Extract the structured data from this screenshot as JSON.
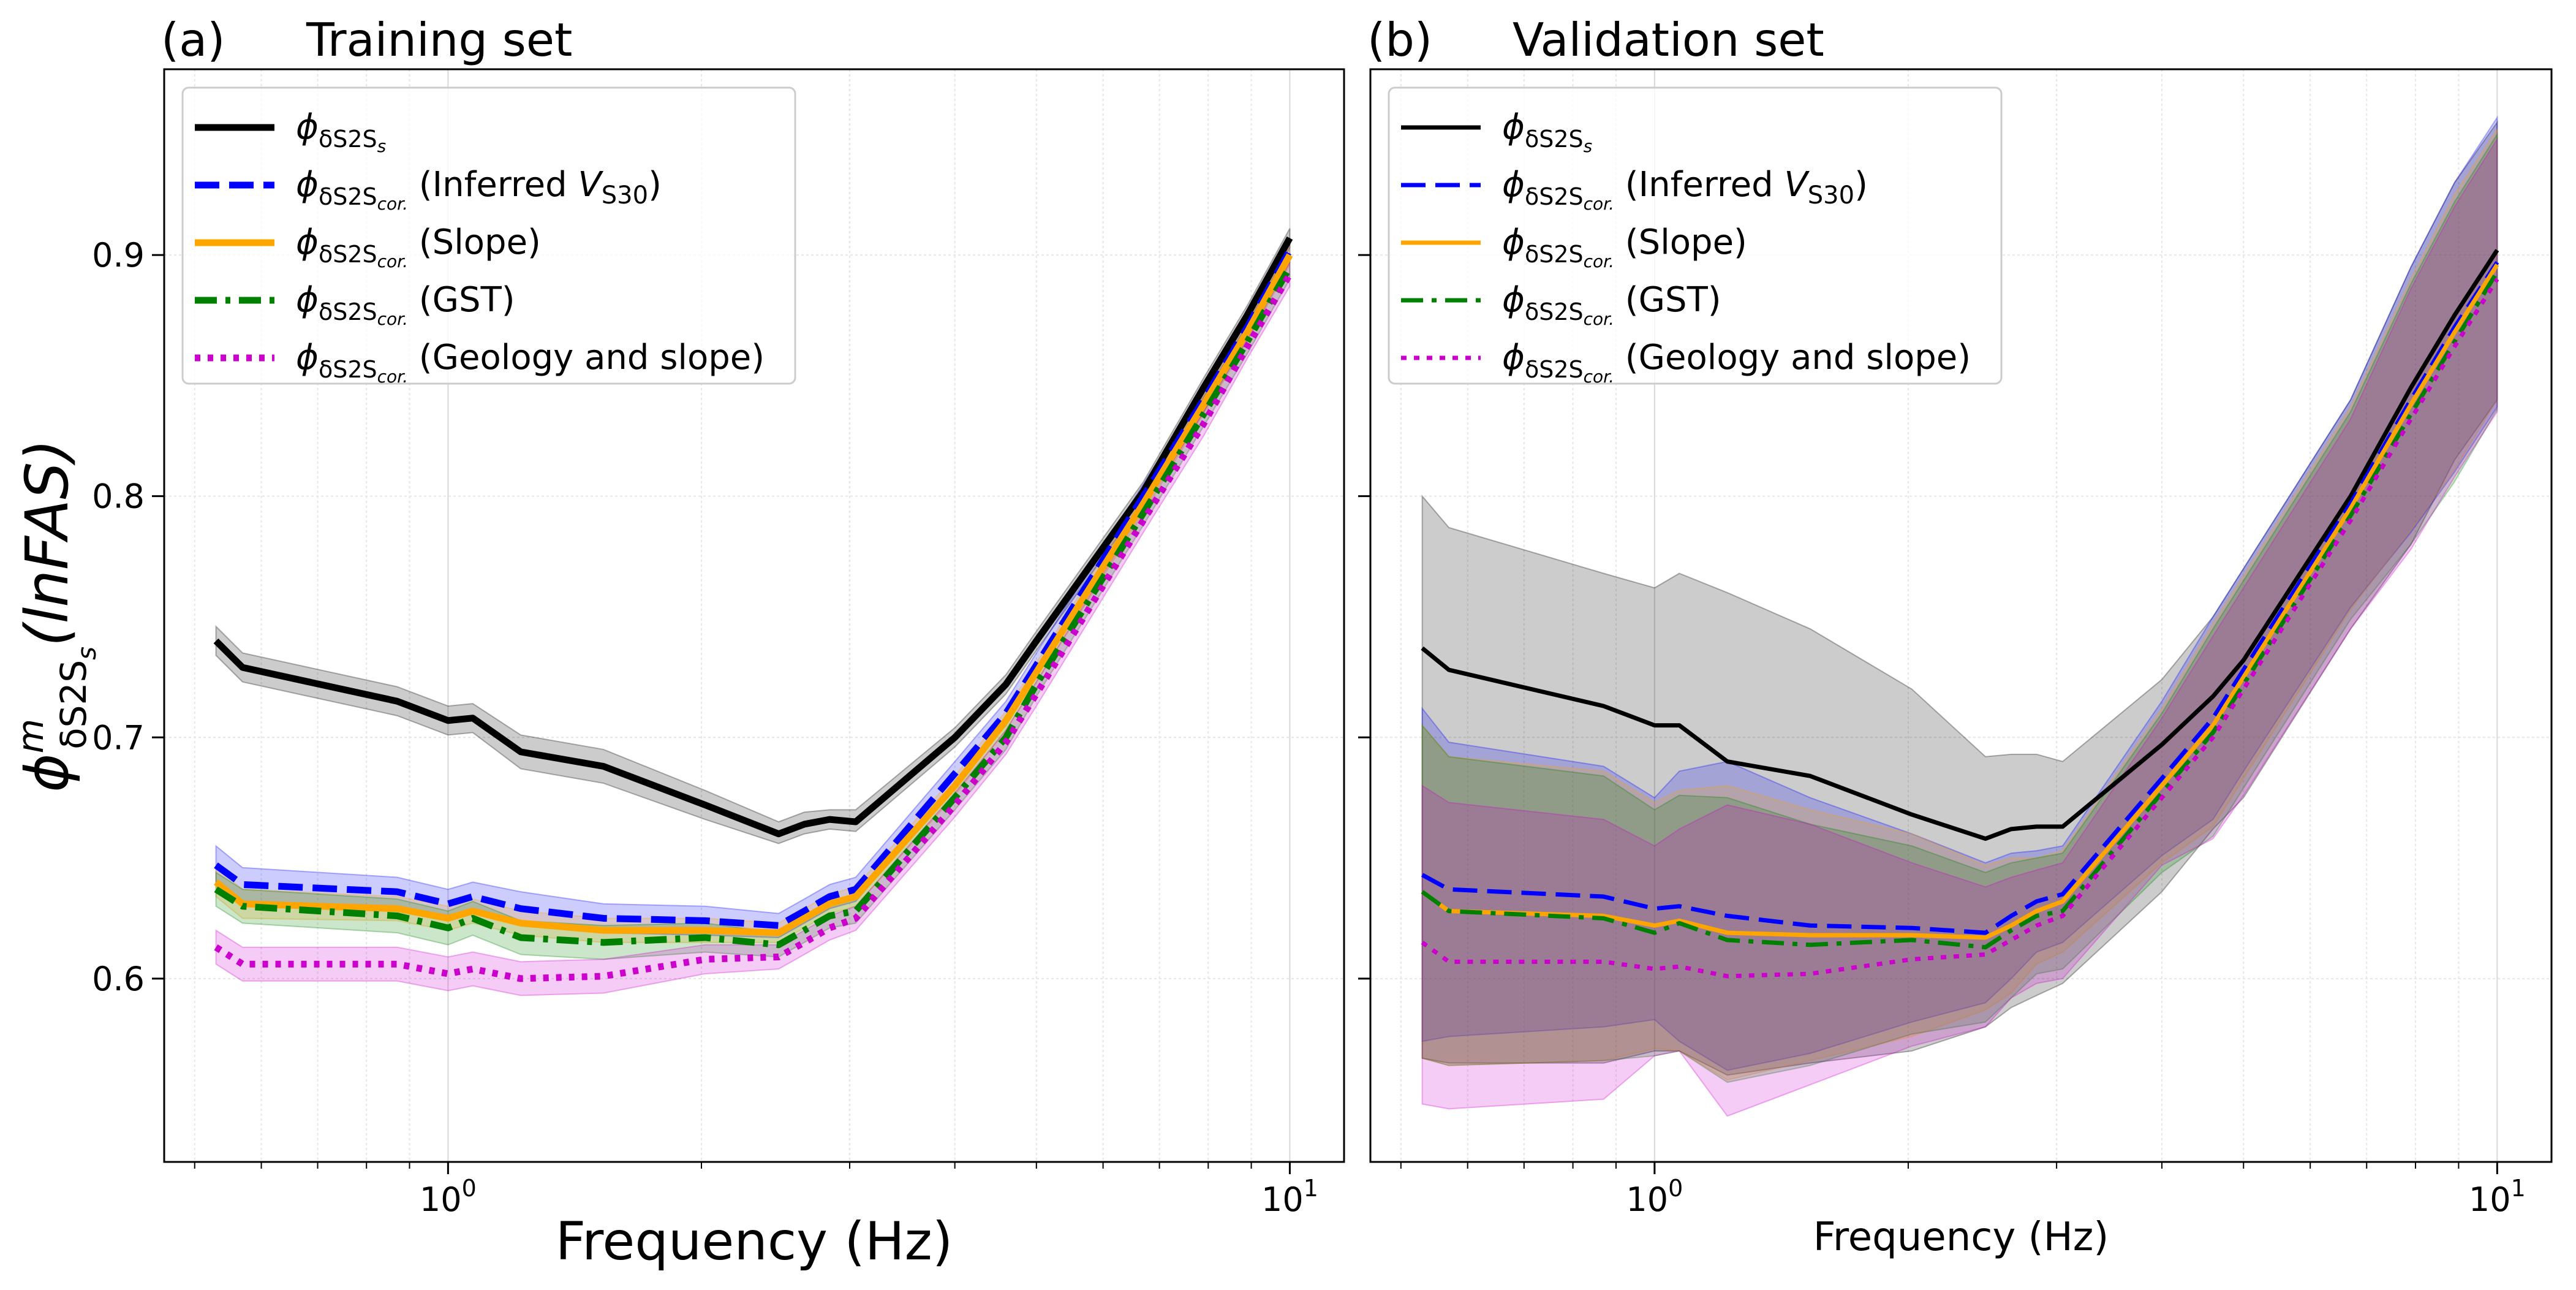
{
  "chart_data": [
    {
      "type": "line",
      "panel_label": "(a)",
      "title": "Training set",
      "xlabel": "Frequency (Hz)",
      "ylabel": {
        "main": "ϕ",
        "sup": "m",
        "sub": "δS2S",
        "subsub": "s",
        "suffix": "(lnFAS)"
      },
      "xscale": "log",
      "xlim": [
        0.46,
        11.6
      ],
      "ylim": [
        0.524,
        0.977
      ],
      "xticks": [
        {
          "value": 1,
          "label": "10",
          "exp": "0"
        },
        {
          "value": 10,
          "label": "10",
          "exp": "1"
        }
      ],
      "yticks": [
        {
          "value": 0.6,
          "label": "0.6"
        },
        {
          "value": 0.7,
          "label": "0.7"
        },
        {
          "value": 0.8,
          "label": "0.8"
        },
        {
          "value": 0.9,
          "label": "0.9"
        }
      ],
      "show_ytick_labels": true,
      "grid": true,
      "legend_position": "top-left",
      "x": [
        0.53,
        0.57,
        0.87,
        1.0,
        1.07,
        1.22,
        1.53,
        2.02,
        2.47,
        2.65,
        2.84,
        3.05,
        4.0,
        4.6,
        5.0,
        6.7,
        7.9,
        8.9,
        10.0
      ],
      "series": [
        {
          "name": {
            "main": "ϕ",
            "sub": "δS2S",
            "subsub": "s",
            "suffix": ""
          },
          "color": "#000000",
          "dash": "solid",
          "values": [
            0.74,
            0.729,
            0.715,
            0.707,
            0.708,
            0.694,
            0.688,
            0.672,
            0.66,
            0.664,
            0.666,
            0.665,
            0.7,
            0.722,
            0.74,
            0.802,
            0.845,
            0.875,
            0.907
          ],
          "upper": [
            0.746,
            0.735,
            0.721,
            0.713,
            0.714,
            0.701,
            0.695,
            0.678,
            0.665,
            0.669,
            0.67,
            0.67,
            0.704,
            0.726,
            0.744,
            0.806,
            0.849,
            0.879,
            0.911
          ],
          "lower": [
            0.734,
            0.723,
            0.709,
            0.701,
            0.702,
            0.687,
            0.681,
            0.666,
            0.656,
            0.66,
            0.662,
            0.661,
            0.696,
            0.718,
            0.736,
            0.798,
            0.841,
            0.871,
            0.903
          ]
        },
        {
          "name": {
            "main": "ϕ",
            "sub": "δS2S",
            "subsub": "cor.",
            "suffix": "(Inferred ",
            "vs": "V",
            "vssub": "S30",
            "close": ")"
          },
          "color": "#0000ff",
          "dash": "dashed",
          "values": [
            0.647,
            0.639,
            0.636,
            0.631,
            0.634,
            0.629,
            0.625,
            0.624,
            0.622,
            0.628,
            0.634,
            0.637,
            0.685,
            0.71,
            0.73,
            0.8,
            0.84,
            0.87,
            0.902
          ],
          "upper": [
            0.655,
            0.646,
            0.642,
            0.637,
            0.64,
            0.636,
            0.631,
            0.63,
            0.627,
            0.633,
            0.639,
            0.642,
            0.69,
            0.715,
            0.735,
            0.805,
            0.845,
            0.875,
            0.907
          ],
          "lower": [
            0.639,
            0.632,
            0.63,
            0.625,
            0.628,
            0.622,
            0.619,
            0.618,
            0.617,
            0.623,
            0.629,
            0.632,
            0.68,
            0.705,
            0.725,
            0.795,
            0.835,
            0.865,
            0.897
          ]
        },
        {
          "name": {
            "main": "ϕ",
            "sub": "δS2S",
            "subsub": "cor.",
            "suffix": "(Slope)"
          },
          "color": "#ffa500",
          "dash": "solid",
          "values": [
            0.64,
            0.631,
            0.629,
            0.625,
            0.628,
            0.623,
            0.62,
            0.62,
            0.619,
            0.625,
            0.631,
            0.634,
            0.68,
            0.707,
            0.727,
            0.797,
            0.838,
            0.868,
            0.9
          ],
          "upper": [
            0.646,
            0.637,
            0.634,
            0.63,
            0.633,
            0.628,
            0.625,
            0.625,
            0.623,
            0.629,
            0.635,
            0.638,
            0.684,
            0.711,
            0.731,
            0.801,
            0.842,
            0.872,
            0.904
          ],
          "lower": [
            0.634,
            0.625,
            0.624,
            0.62,
            0.623,
            0.618,
            0.615,
            0.615,
            0.615,
            0.621,
            0.627,
            0.63,
            0.676,
            0.703,
            0.723,
            0.793,
            0.834,
            0.864,
            0.896
          ]
        },
        {
          "name": {
            "main": "ϕ",
            "sub": "δS2S",
            "subsub": "cor.",
            "suffix": "(GST)"
          },
          "color": "#008000",
          "dash": "dashdot",
          "values": [
            0.637,
            0.63,
            0.626,
            0.621,
            0.625,
            0.617,
            0.615,
            0.617,
            0.614,
            0.62,
            0.626,
            0.628,
            0.675,
            0.7,
            0.722,
            0.793,
            0.834,
            0.864,
            0.895
          ],
          "upper": [
            0.644,
            0.637,
            0.633,
            0.628,
            0.632,
            0.624,
            0.622,
            0.623,
            0.619,
            0.625,
            0.631,
            0.633,
            0.68,
            0.705,
            0.727,
            0.798,
            0.839,
            0.869,
            0.9
          ],
          "lower": [
            0.63,
            0.623,
            0.619,
            0.614,
            0.618,
            0.61,
            0.608,
            0.611,
            0.609,
            0.615,
            0.621,
            0.623,
            0.67,
            0.695,
            0.717,
            0.788,
            0.829,
            0.859,
            0.89
          ]
        },
        {
          "name": {
            "main": "ϕ",
            "sub": "δS2S",
            "subsub": "cor.",
            "suffix": "(Geology and slope)"
          },
          "color": "#cc00cc",
          "dash": "dotted",
          "values": [
            0.613,
            0.606,
            0.606,
            0.602,
            0.604,
            0.6,
            0.601,
            0.608,
            0.609,
            0.615,
            0.621,
            0.625,
            0.672,
            0.698,
            0.718,
            0.79,
            0.83,
            0.862,
            0.892
          ],
          "upper": [
            0.62,
            0.613,
            0.613,
            0.609,
            0.611,
            0.607,
            0.608,
            0.614,
            0.614,
            0.62,
            0.626,
            0.63,
            0.677,
            0.703,
            0.723,
            0.795,
            0.835,
            0.867,
            0.897
          ],
          "lower": [
            0.606,
            0.599,
            0.599,
            0.595,
            0.597,
            0.593,
            0.594,
            0.602,
            0.604,
            0.61,
            0.616,
            0.62,
            0.667,
            0.693,
            0.713,
            0.785,
            0.825,
            0.857,
            0.887
          ]
        }
      ]
    },
    {
      "type": "line",
      "panel_label": "(b)",
      "title": "Validation set",
      "xlabel": "Frequency (Hz)",
      "xscale": "log",
      "xlim": [
        0.46,
        11.6
      ],
      "ylim": [
        0.524,
        0.977
      ],
      "xticks": [
        {
          "value": 1,
          "label": "10",
          "exp": "0"
        },
        {
          "value": 10,
          "label": "10",
          "exp": "1"
        }
      ],
      "yticks": [
        {
          "value": 0.6,
          "label": "0.6"
        },
        {
          "value": 0.7,
          "label": "0.7"
        },
        {
          "value": 0.8,
          "label": "0.8"
        },
        {
          "value": 0.9,
          "label": "0.9"
        }
      ],
      "show_ytick_labels": false,
      "grid": true,
      "legend_position": "top-left",
      "x": [
        0.53,
        0.57,
        0.87,
        1.0,
        1.07,
        1.22,
        1.53,
        2.02,
        2.47,
        2.65,
        2.84,
        3.05,
        4.0,
        4.6,
        5.0,
        6.7,
        7.9,
        8.9,
        10.0
      ],
      "series": [
        {
          "name": {
            "main": "ϕ",
            "sub": "δS2S",
            "subsub": "s",
            "suffix": ""
          },
          "color": "#000000",
          "dash": "solid",
          "values": [
            0.737,
            0.728,
            0.713,
            0.705,
            0.705,
            0.69,
            0.684,
            0.668,
            0.658,
            0.662,
            0.663,
            0.663,
            0.697,
            0.717,
            0.732,
            0.8,
            0.845,
            0.875,
            0.902
          ],
          "upper": [
            0.8,
            0.787,
            0.768,
            0.762,
            0.768,
            0.76,
            0.745,
            0.72,
            0.692,
            0.693,
            0.693,
            0.69,
            0.724,
            0.75,
            0.77,
            0.84,
            0.895,
            0.93,
            0.955
          ],
          "lower": [
            0.567,
            0.565,
            0.565,
            0.57,
            0.57,
            0.56,
            0.565,
            0.57,
            0.58,
            0.588,
            0.593,
            0.598,
            0.636,
            0.662,
            0.675,
            0.745,
            0.78,
            0.815,
            0.84
          ]
        },
        {
          "name": {
            "main": "ϕ",
            "sub": "δS2S",
            "subsub": "cor.",
            "suffix": "(Inferred ",
            "vs": "V",
            "vssub": "S30",
            "close": ")"
          },
          "color": "#0000ff",
          "dash": "dashed",
          "values": [
            0.643,
            0.637,
            0.634,
            0.629,
            0.63,
            0.626,
            0.622,
            0.621,
            0.619,
            0.626,
            0.632,
            0.635,
            0.683,
            0.708,
            0.728,
            0.797,
            0.84,
            0.87,
            0.897
          ],
          "upper": [
            0.712,
            0.698,
            0.688,
            0.675,
            0.686,
            0.69,
            0.675,
            0.66,
            0.648,
            0.652,
            0.653,
            0.655,
            0.715,
            0.75,
            0.77,
            0.84,
            0.895,
            0.93,
            0.957
          ],
          "lower": [
            0.574,
            0.576,
            0.58,
            0.583,
            0.574,
            0.562,
            0.569,
            0.582,
            0.59,
            0.6,
            0.611,
            0.615,
            0.651,
            0.666,
            0.686,
            0.754,
            0.785,
            0.81,
            0.837
          ]
        },
        {
          "name": {
            "main": "ϕ",
            "sub": "δS2S",
            "subsub": "cor.",
            "suffix": "(Slope)"
          },
          "color": "#ffa500",
          "dash": "solid",
          "values": [
            0.636,
            0.628,
            0.626,
            0.622,
            0.624,
            0.619,
            0.618,
            0.618,
            0.617,
            0.622,
            0.628,
            0.632,
            0.68,
            0.705,
            0.725,
            0.795,
            0.838,
            0.868,
            0.896
          ],
          "upper": [
            0.705,
            0.692,
            0.686,
            0.673,
            0.678,
            0.68,
            0.67,
            0.66,
            0.647,
            0.65,
            0.65,
            0.653,
            0.712,
            0.747,
            0.767,
            0.837,
            0.89,
            0.925,
            0.952
          ],
          "lower": [
            0.567,
            0.564,
            0.566,
            0.571,
            0.57,
            0.558,
            0.566,
            0.576,
            0.587,
            0.594,
            0.606,
            0.611,
            0.648,
            0.663,
            0.683,
            0.753,
            0.786,
            0.811,
            0.84
          ]
        },
        {
          "name": {
            "main": "ϕ",
            "sub": "δS2S",
            "subsub": "cor.",
            "suffix": "(GST)"
          },
          "color": "#008000",
          "dash": "dashdot",
          "values": [
            0.636,
            0.628,
            0.625,
            0.619,
            0.623,
            0.616,
            0.614,
            0.616,
            0.613,
            0.62,
            0.626,
            0.628,
            0.677,
            0.702,
            0.722,
            0.792,
            0.834,
            0.864,
            0.893
          ],
          "upper": [
            0.705,
            0.692,
            0.684,
            0.67,
            0.676,
            0.675,
            0.664,
            0.655,
            0.644,
            0.648,
            0.65,
            0.652,
            0.71,
            0.745,
            0.765,
            0.835,
            0.888,
            0.922,
            0.95
          ],
          "lower": [
            0.567,
            0.564,
            0.566,
            0.568,
            0.57,
            0.557,
            0.564,
            0.577,
            0.582,
            0.592,
            0.602,
            0.604,
            0.644,
            0.659,
            0.679,
            0.749,
            0.78,
            0.806,
            0.836
          ]
        },
        {
          "name": {
            "main": "ϕ",
            "sub": "δS2S",
            "subsub": "cor.",
            "suffix": "(Geology and slope)"
          },
          "color": "#cc00cc",
          "dash": "dotted",
          "values": [
            0.615,
            0.607,
            0.607,
            0.604,
            0.605,
            0.601,
            0.602,
            0.608,
            0.61,
            0.616,
            0.622,
            0.626,
            0.675,
            0.7,
            0.72,
            0.79,
            0.832,
            0.862,
            0.89
          ],
          "upper": [
            0.68,
            0.673,
            0.666,
            0.655,
            0.662,
            0.672,
            0.664,
            0.648,
            0.638,
            0.642,
            0.645,
            0.648,
            0.708,
            0.742,
            0.762,
            0.832,
            0.886,
            0.92,
            0.948
          ],
          "lower": [
            0.548,
            0.546,
            0.55,
            0.568,
            0.57,
            0.543,
            0.556,
            0.572,
            0.58,
            0.592,
            0.598,
            0.6,
            0.647,
            0.658,
            0.676,
            0.745,
            0.778,
            0.808,
            0.835
          ]
        }
      ]
    }
  ]
}
